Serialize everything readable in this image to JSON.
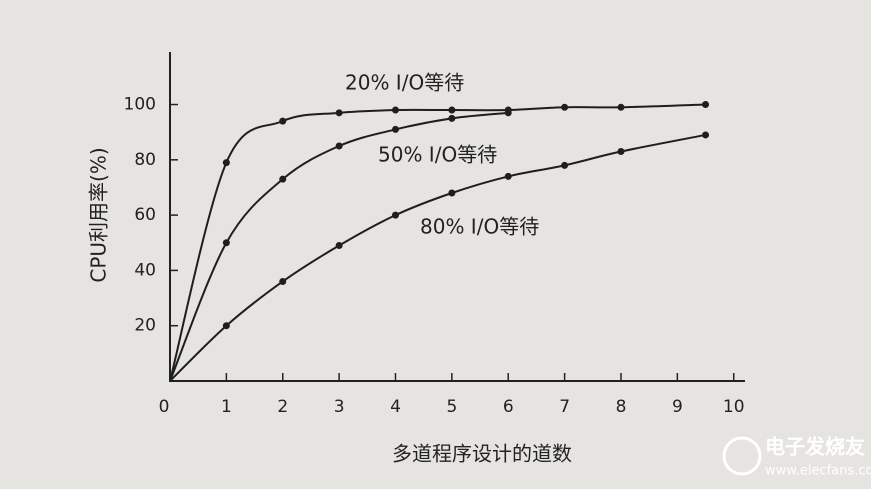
{
  "chart_data": {
    "type": "line",
    "xlabel": "多道程序设计的道数",
    "ylabel": "CPU利用率(%)",
    "xlim": [
      0,
      10.2
    ],
    "ylim": [
      0,
      119
    ],
    "xticks": [
      0,
      1,
      2,
      3,
      4,
      5,
      6,
      7,
      8,
      9,
      10
    ],
    "yticks": [
      20,
      40,
      60,
      80,
      100
    ],
    "color": "#1e1e1e",
    "series": [
      {
        "name": "20% I/O等待",
        "x": [
          0,
          1,
          2,
          3,
          4,
          5,
          6,
          7,
          8,
          9.5
        ],
        "values": [
          0,
          79,
          94,
          97,
          98,
          98,
          98,
          99,
          99,
          100
        ]
      },
      {
        "name": "50% I/O等待",
        "x": [
          0,
          1,
          2,
          3,
          4,
          5,
          6
        ],
        "values": [
          0,
          50,
          73,
          85,
          91,
          95,
          97
        ]
      },
      {
        "name": "80% I/O等待",
        "x": [
          0,
          1,
          2,
          3,
          4,
          5,
          6,
          7,
          8,
          9.5
        ],
        "values": [
          0,
          20,
          36,
          49,
          60,
          68,
          74,
          78,
          83,
          89
        ]
      }
    ],
    "watermark": {
      "text": "电子发烧友",
      "url": "www.elecfans.com"
    }
  }
}
